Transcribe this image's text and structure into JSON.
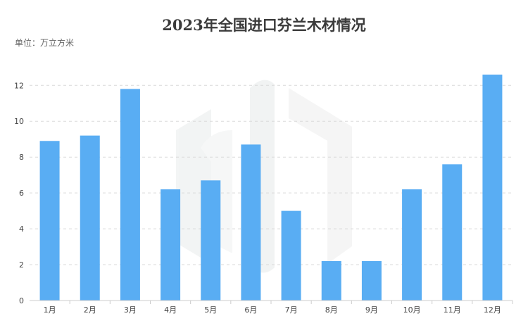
{
  "chart_data": {
    "type": "bar",
    "title": "2023年全国进口芬兰木材情况",
    "unit_label": "单位：万立方米",
    "categories": [
      "1月",
      "2月",
      "3月",
      "4月",
      "5月",
      "6月",
      "7月",
      "8月",
      "9月",
      "10月",
      "11月",
      "12月"
    ],
    "values": [
      8.9,
      9.2,
      11.8,
      6.2,
      6.7,
      8.7,
      5.0,
      2.2,
      2.2,
      6.2,
      7.6,
      12.6
    ],
    "ylim": [
      0,
      12.6
    ],
    "yticks": [
      0,
      2,
      4,
      6,
      8,
      10,
      12
    ],
    "grid": true,
    "colors": {
      "bar": "#59adf3",
      "grid": "#d9d9d9",
      "axis": "#cccccc"
    }
  }
}
